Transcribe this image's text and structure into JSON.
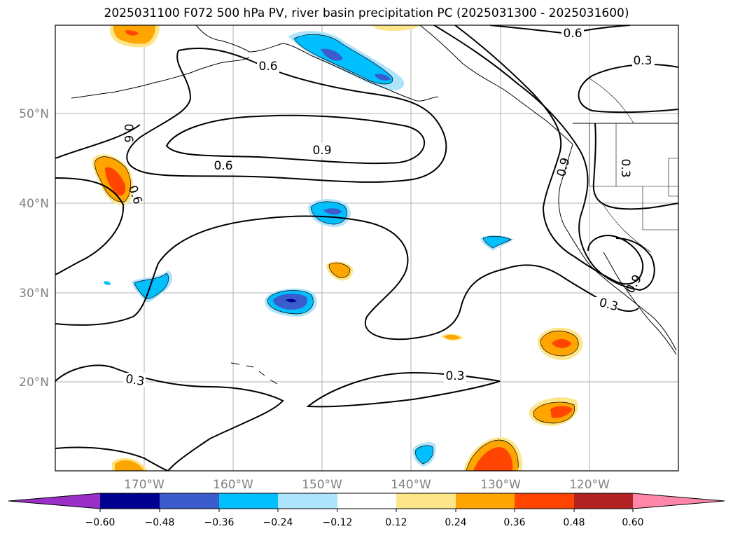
{
  "title": "2025031100 F072 500 hPa PV, river basin precipitation PC (2025031300 - 2025031600)",
  "map": {
    "lat_labels": [
      "50°N",
      "40°N",
      "30°N",
      "20°N"
    ],
    "lon_labels": [
      "170°W",
      "160°W",
      "150°W",
      "140°W",
      "130°W",
      "120°W"
    ],
    "contour_labels": [
      "0.6",
      "0.3",
      "0.6",
      "0.9",
      "0.6",
      "0.6",
      "0.6",
      "0.9",
      "0.3",
      "0.3",
      "0.3",
      "0.3",
      "0.9"
    ]
  },
  "colorbar": {
    "ticks": [
      "−0.60",
      "−0.48",
      "−0.36",
      "−0.24",
      "−0.12",
      "0.12",
      "0.24",
      "0.36",
      "0.48",
      "0.60"
    ],
    "colors": [
      "#9b30c8",
      "#000090",
      "#3a5ccc",
      "#00bfff",
      "#aee4fb",
      "#ffffff",
      "#fde68a",
      "#ffa500",
      "#ff4500",
      "#b22222",
      "#ff88aa"
    ]
  },
  "fill_colors": {
    "light_blue": "#aee4fb",
    "cyan": "#00bfff",
    "blue": "#3a5ccc",
    "navy": "#000090",
    "yellow": "#fde68a",
    "orange": "#ffa500",
    "red_orange": "#ff4500"
  }
}
